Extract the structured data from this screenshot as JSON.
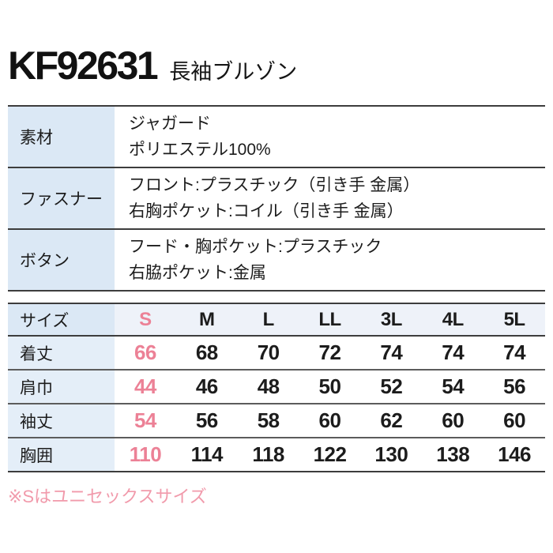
{
  "page": {
    "product_code": "KF92631",
    "product_name": "長袖ブルゾン"
  },
  "spec_table": {
    "rows": [
      {
        "label": "素材",
        "lines": [
          "ジャガード",
          "ポリエステル100%"
        ]
      },
      {
        "label": "ファスナー",
        "lines": [
          "フロント:プラスチック（引き手 金属）",
          "右胸ポケット:コイル（引き手 金属）"
        ]
      },
      {
        "label": "ボタン",
        "lines": [
          "フード・胸ポケット:プラスチック",
          "右脇ポケット:金属"
        ]
      }
    ]
  },
  "size_table": {
    "header_label": "サイズ",
    "sizes": [
      "S",
      "M",
      "L",
      "LL",
      "3L",
      "4L",
      "5L"
    ],
    "highlight_column": 0,
    "rows": [
      {
        "label": "着丈",
        "values": [
          66,
          68,
          70,
          72,
          74,
          74,
          74
        ]
      },
      {
        "label": "肩巾",
        "values": [
          44,
          46,
          48,
          50,
          52,
          54,
          56
        ]
      },
      {
        "label": "袖丈",
        "values": [
          54,
          56,
          58,
          60,
          62,
          60,
          60
        ]
      },
      {
        "label": "胸囲",
        "values": [
          110,
          114,
          118,
          122,
          130,
          138,
          146
        ]
      }
    ]
  },
  "footnote": {
    "text": "※Sはユニセックスサイズ"
  },
  "colors": {
    "label_bg": "#dbe8f5",
    "label_bg_light": "#e4eef8",
    "header_bg": "#eef2f9",
    "accent": "#ec8196",
    "note_pink": "#f19aab",
    "line_dark": "#3d3d3d",
    "line_mid": "#5c5c5c",
    "text": "#1c1c1c",
    "bg": "#ffffff"
  }
}
